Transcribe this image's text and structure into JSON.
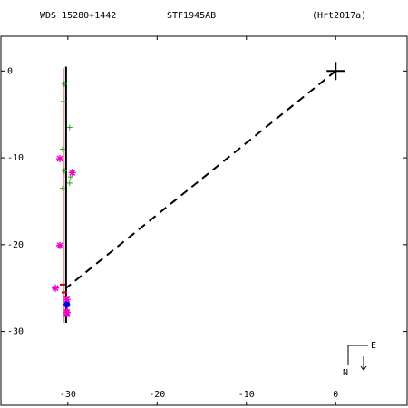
{
  "header": {
    "left": "WDS 15280+1442",
    "center": "STF1945AB",
    "right": "(Hrt2017a)"
  },
  "compass": {
    "east_label": "E",
    "north_label": "N"
  },
  "chart_data": {
    "type": "scatter",
    "title": "",
    "xlabel": "",
    "ylabel": "",
    "xlim": [
      -37.5,
      8
    ],
    "ylim": [
      -38.5,
      4
    ],
    "xticks": [
      -30,
      -20,
      -10,
      0
    ],
    "xtick_labels": [
      "-30",
      "-20",
      "-10",
      "0"
    ],
    "yticks": [
      0,
      -10,
      -20,
      -30
    ],
    "ytick_labels": [
      "0",
      "-10",
      "-20",
      "-30"
    ],
    "primary": {
      "x": 0,
      "y": 0,
      "marker": "plus",
      "color": "#000000"
    },
    "connector": {
      "from": [
        0,
        0
      ],
      "to": [
        -30.2,
        -25
      ],
      "style": "dashed",
      "color": "#000000"
    },
    "orbit_line": {
      "x": [
        -30.2,
        -30.2
      ],
      "y": [
        0.5,
        -29
      ],
      "color": "#000000"
    },
    "red_line": {
      "x": [
        -30.5,
        -30.5
      ],
      "y": [
        0.3,
        -29
      ],
      "color": "#cc0000"
    },
    "series": [
      {
        "marker": "plus",
        "color": "#22aa22",
        "points": [
          [
            -30.4,
            -1.5
          ],
          [
            -30.5,
            -3.5
          ],
          [
            -29.8,
            -6.5
          ],
          [
            -30.6,
            -9.0
          ],
          [
            -30.4,
            -11.5
          ],
          [
            -29.7,
            -12.2
          ],
          [
            -29.8,
            -12.9
          ],
          [
            -30.6,
            -13.5
          ]
        ]
      },
      {
        "marker": "asterisk",
        "color": "#ee00cc",
        "points": [
          [
            -30.9,
            -10.1
          ],
          [
            -29.5,
            -11.7
          ],
          [
            -30.9,
            -20.1
          ],
          [
            -31.4,
            -25.0
          ],
          [
            -30.1,
            -26.3
          ],
          [
            -30.1,
            -27.8
          ]
        ]
      },
      {
        "marker": "triangle",
        "color": "#ee00cc",
        "points": [
          [
            -30.1,
            -27.6
          ],
          [
            -30.1,
            -28.0
          ]
        ]
      },
      {
        "marker": "tick",
        "color": "#cc0000",
        "points": [
          [
            -30.6,
            -24.6
          ],
          [
            -30.4,
            -25.5
          ]
        ]
      },
      {
        "marker": "dot",
        "color": "#0000ee",
        "points": [
          [
            -30.1,
            -26.9
          ]
        ]
      }
    ]
  }
}
